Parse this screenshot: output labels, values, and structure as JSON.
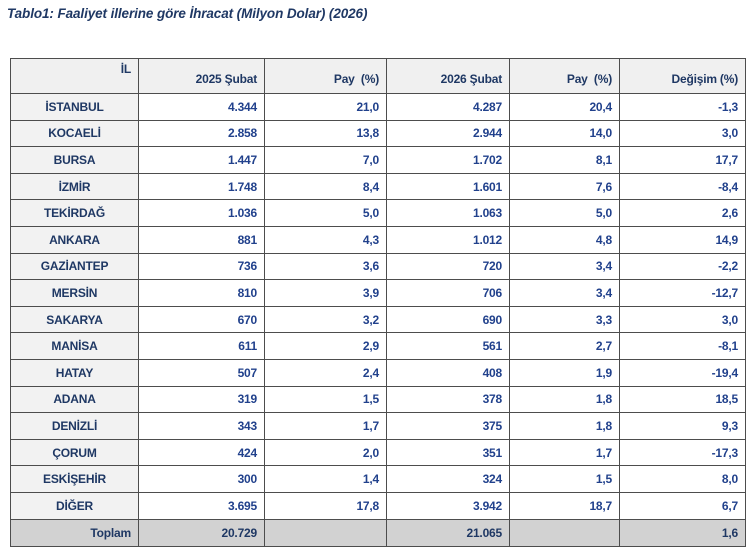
{
  "title": "Tablo1: Faaliyet illerine göre İhracat (Milyon Dolar) (2026)",
  "table": {
    "columns": [
      "İL",
      "2025 Şubat",
      "Pay  (%)",
      "2026 Şubat",
      "Pay  (%)",
      "Değişim (%)"
    ],
    "rows": [
      {
        "il": "İSTANBUL",
        "v2025": "4.344",
        "pay2025": "21,0",
        "v2026": "4.287",
        "pay2026": "20,4",
        "degisim": "-1,3"
      },
      {
        "il": "KOCAELİ",
        "v2025": "2.858",
        "pay2025": "13,8",
        "v2026": "2.944",
        "pay2026": "14,0",
        "degisim": "3,0"
      },
      {
        "il": "BURSA",
        "v2025": "1.447",
        "pay2025": "7,0",
        "v2026": "1.702",
        "pay2026": "8,1",
        "degisim": "17,7"
      },
      {
        "il": "İZMİR",
        "v2025": "1.748",
        "pay2025": "8,4",
        "v2026": "1.601",
        "pay2026": "7,6",
        "degisim": "-8,4"
      },
      {
        "il": "TEKİRDAĞ",
        "v2025": "1.036",
        "pay2025": "5,0",
        "v2026": "1.063",
        "pay2026": "5,0",
        "degisim": "2,6"
      },
      {
        "il": "ANKARA",
        "v2025": "881",
        "pay2025": "4,3",
        "v2026": "1.012",
        "pay2026": "4,8",
        "degisim": "14,9"
      },
      {
        "il": "GAZİANTEP",
        "v2025": "736",
        "pay2025": "3,6",
        "v2026": "720",
        "pay2026": "3,4",
        "degisim": "-2,2"
      },
      {
        "il": "MERSİN",
        "v2025": "810",
        "pay2025": "3,9",
        "v2026": "706",
        "pay2026": "3,4",
        "degisim": "-12,7"
      },
      {
        "il": "SAKARYA",
        "v2025": "670",
        "pay2025": "3,2",
        "v2026": "690",
        "pay2026": "3,3",
        "degisim": "3,0"
      },
      {
        "il": "MANİSA",
        "v2025": "611",
        "pay2025": "2,9",
        "v2026": "561",
        "pay2026": "2,7",
        "degisim": "-8,1"
      },
      {
        "il": "HATAY",
        "v2025": "507",
        "pay2025": "2,4",
        "v2026": "408",
        "pay2026": "1,9",
        "degisim": "-19,4"
      },
      {
        "il": "ADANA",
        "v2025": "319",
        "pay2025": "1,5",
        "v2026": "378",
        "pay2026": "1,8",
        "degisim": "18,5"
      },
      {
        "il": "DENİZLİ",
        "v2025": "343",
        "pay2025": "1,7",
        "v2026": "375",
        "pay2026": "1,8",
        "degisim": "9,3"
      },
      {
        "il": "ÇORUM",
        "v2025": "424",
        "pay2025": "2,0",
        "v2026": "351",
        "pay2026": "1,7",
        "degisim": "-17,3"
      },
      {
        "il": "ESKİŞEHİR",
        "v2025": "300",
        "pay2025": "1,4",
        "v2026": "324",
        "pay2026": "1,5",
        "degisim": "8,0"
      },
      {
        "il": "DİĞER",
        "v2025": "3.695",
        "pay2025": "17,8",
        "v2026": "3.942",
        "pay2026": "18,7",
        "degisim": "6,7"
      }
    ],
    "total": {
      "label": "Toplam",
      "v2025": "20.729",
      "pay2025": "",
      "v2026": "21.065",
      "pay2026": "",
      "degisim": "1,6"
    }
  },
  "colors": {
    "navy": "#1f3864",
    "number_blue": "#21418c",
    "header_bg": "#f0f0f0",
    "row_label_bg": "#f2f2f2",
    "total_bg": "#d2d2d2",
    "border": "#4d4d4d",
    "page_bg": "#ffffff"
  }
}
